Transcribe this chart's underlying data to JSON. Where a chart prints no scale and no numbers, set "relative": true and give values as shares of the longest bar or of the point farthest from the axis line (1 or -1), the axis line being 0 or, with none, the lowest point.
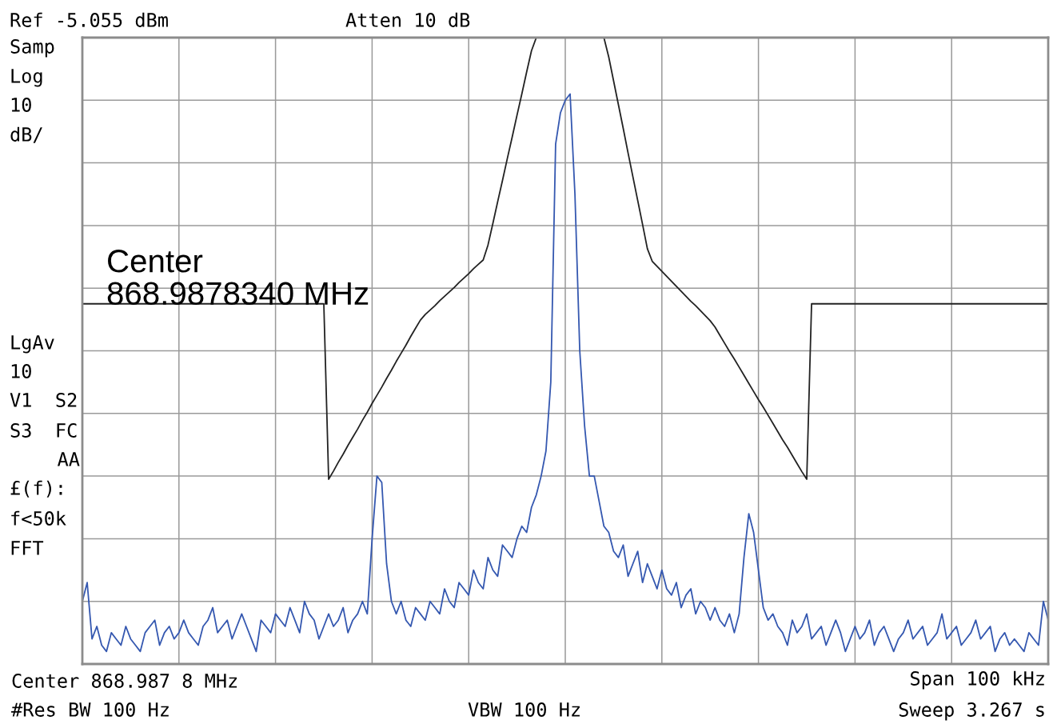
{
  "chart_data": {
    "type": "line",
    "title": "Ref -5.055 dBm",
    "subtitle": "Atten 10 dB",
    "relative": true,
    "grid": true,
    "line_style": "solid",
    "categories": [
      null,
      null,
      null,
      null,
      null,
      null,
      null,
      null,
      null,
      null,
      null,
      null,
      null,
      null,
      null,
      null,
      null,
      null,
      null,
      null,
      null,
      null,
      null,
      null,
      null,
      null,
      null,
      null,
      null,
      null,
      null,
      null,
      null,
      null,
      null,
      null,
      null,
      null,
      null,
      null,
      null,
      null,
      null,
      null,
      null,
      null,
      null,
      null,
      null,
      null,
      null,
      null,
      null,
      null,
      null,
      null,
      null,
      null,
      null,
      null,
      null,
      null,
      null,
      null,
      null,
      null,
      null,
      null,
      null,
      null,
      null,
      null,
      null,
      null,
      null,
      null,
      null,
      null,
      null,
      null,
      null,
      null,
      null,
      null,
      null,
      null,
      null,
      null,
      null,
      null,
      null,
      null,
      null,
      null,
      null,
      null,
      null,
      null,
      null,
      null,
      null,
      null,
      null,
      null,
      null,
      null,
      null,
      null,
      null,
      null,
      null,
      null,
      null,
      null,
      null,
      null,
      null,
      null,
      null,
      null,
      null,
      null,
      null,
      null,
      null,
      null,
      null,
      null,
      null,
      null,
      null,
      null,
      null,
      null,
      null,
      null,
      null,
      null,
      null,
      null,
      null,
      null,
      null,
      null,
      null,
      null,
      null,
      null,
      null,
      null,
      null,
      null,
      null,
      null,
      null,
      null,
      null,
      null,
      null,
      null,
      null,
      null,
      null,
      null,
      null,
      null,
      null,
      null,
      null,
      null,
      null,
      null,
      null,
      null,
      null,
      null,
      null,
      null,
      null,
      null,
      null,
      null,
      null,
      null,
      null,
      null,
      null,
      null,
      null,
      null,
      null,
      null,
      null,
      null,
      null,
      null,
      null,
      null,
      null,
      null,
      null
    ],
    "series": [
      {
        "color": "#3558b0",
        "values": [
          0.1,
          0.13,
          0.04,
          0.06,
          0.03,
          0.02,
          0.05,
          0.04,
          0.03,
          0.06,
          0.04,
          0.03,
          0.02,
          0.05,
          0.06,
          0.07,
          0.03,
          0.05,
          0.06,
          0.04,
          0.05,
          0.07,
          0.05,
          0.04,
          0.03,
          0.06,
          0.07,
          0.09,
          0.05,
          0.06,
          0.07,
          0.04,
          0.06,
          0.08,
          0.06,
          0.04,
          0.02,
          0.07,
          0.06,
          0.05,
          0.08,
          0.07,
          0.06,
          0.09,
          0.07,
          0.05,
          0.1,
          0.08,
          0.07,
          0.04,
          0.06,
          0.08,
          0.06,
          0.07,
          0.09,
          0.05,
          0.07,
          0.08,
          0.1,
          0.08,
          0.2,
          0.3,
          0.29,
          0.16,
          0.1,
          0.08,
          0.1,
          0.07,
          0.06,
          0.09,
          0.08,
          0.07,
          0.1,
          0.09,
          0.08,
          0.12,
          0.1,
          0.09,
          0.13,
          0.12,
          0.11,
          0.15,
          0.13,
          0.12,
          0.17,
          0.15,
          0.14,
          0.19,
          0.18,
          0.17,
          0.2,
          0.22,
          0.21,
          0.25,
          0.27,
          0.3,
          0.34,
          0.45,
          0.83,
          0.88,
          0.9,
          0.91,
          0.75,
          0.5,
          0.38,
          0.3,
          0.3,
          0.26,
          0.22,
          0.21,
          0.18,
          0.17,
          0.19,
          0.14,
          0.16,
          0.18,
          0.13,
          0.16,
          0.14,
          0.12,
          0.15,
          0.12,
          0.11,
          0.13,
          0.09,
          0.11,
          0.12,
          0.08,
          0.1,
          0.09,
          0.07,
          0.09,
          0.07,
          0.06,
          0.08,
          0.05,
          0.08,
          0.17,
          0.24,
          0.21,
          0.15,
          0.09,
          0.07,
          0.08,
          0.06,
          0.05,
          0.03,
          0.07,
          0.05,
          0.06,
          0.08,
          0.04,
          0.05,
          0.06,
          0.03,
          0.05,
          0.07,
          0.05,
          0.02,
          0.04,
          0.06,
          0.04,
          0.05,
          0.07,
          0.03,
          0.05,
          0.06,
          0.04,
          0.02,
          0.04,
          0.05,
          0.07,
          0.04,
          0.05,
          0.06,
          0.03,
          0.04,
          0.05,
          0.08,
          0.04,
          0.05,
          0.06,
          0.03,
          0.04,
          0.05,
          0.07,
          0.04,
          0.05,
          0.06,
          0.02,
          0.04,
          0.05,
          0.03,
          0.04,
          0.03,
          0.02,
          0.05,
          0.04,
          0.03,
          0.1,
          0.07
        ]
      },
      {
        "color": "#222222",
        "values": [
          0.575,
          0.575,
          0.575,
          0.575,
          0.575,
          0.575,
          0.575,
          0.575,
          0.575,
          0.575,
          0.575,
          0.575,
          0.575,
          0.575,
          0.575,
          0.575,
          0.575,
          0.575,
          0.575,
          0.575,
          0.575,
          0.575,
          0.575,
          0.575,
          0.575,
          0.575,
          0.575,
          0.575,
          0.575,
          0.575,
          0.575,
          0.575,
          0.575,
          0.575,
          0.575,
          0.575,
          0.575,
          0.575,
          0.575,
          0.575,
          0.575,
          0.575,
          0.575,
          0.575,
          0.575,
          0.575,
          0.575,
          0.575,
          0.575,
          0.575,
          0.575,
          0.295,
          0.308,
          0.322,
          0.335,
          0.349,
          0.362,
          0.375,
          0.389,
          0.402,
          0.416,
          0.429,
          0.442,
          0.456,
          0.469,
          0.483,
          0.496,
          0.509,
          0.523,
          0.536,
          0.549,
          0.558,
          0.565,
          0.572,
          0.58,
          0.587,
          0.594,
          0.601,
          0.609,
          0.616,
          0.623,
          0.631,
          0.638,
          0.645,
          0.669,
          0.703,
          0.738,
          0.772,
          0.807,
          0.841,
          0.876,
          0.91,
          0.945,
          0.979,
          1.0,
          1.0,
          1.0,
          1.0,
          1.0,
          1.0,
          1.0,
          1.0,
          1.0,
          1.0,
          1.0,
          1.0,
          1.0,
          1.0,
          1.0,
          0.969,
          0.931,
          0.893,
          0.855,
          0.816,
          0.778,
          0.74,
          0.702,
          0.663,
          0.643,
          0.635,
          0.627,
          0.619,
          0.611,
          0.603,
          0.595,
          0.587,
          0.579,
          0.572,
          0.564,
          0.556,
          0.548,
          0.538,
          0.525,
          0.512,
          0.499,
          0.487,
          0.474,
          0.461,
          0.448,
          0.435,
          0.422,
          0.41,
          0.397,
          0.384,
          0.371,
          0.358,
          0.346,
          0.333,
          0.32,
          0.307,
          0.295,
          0.575,
          0.575,
          0.575,
          0.575,
          0.575,
          0.575,
          0.575,
          0.575,
          0.575,
          0.575,
          0.575,
          0.575,
          0.575,
          0.575,
          0.575,
          0.575,
          0.575,
          0.575,
          0.575,
          0.575,
          0.575,
          0.575,
          0.575,
          0.575,
          0.575,
          0.575,
          0.575,
          0.575,
          0.575,
          0.575,
          0.575,
          0.575,
          0.575,
          0.575,
          0.575,
          0.575,
          0.575,
          0.575,
          0.575,
          0.575,
          0.575,
          0.575,
          0.575,
          0.575,
          0.575,
          0.575,
          0.575,
          0.575,
          0.575,
          0.575
        ]
      }
    ],
    "annotations": [
      "Samp",
      "Log",
      "10",
      "dB/",
      "LgAv",
      "10",
      "V1  S2",
      "S3  FC",
      "AA",
      "£(f):",
      "f<50k",
      "FFT",
      "Center 868.987 8 MHz",
      "#Res BW 100 Hz",
      "VBW 100 Hz",
      "Span 100 kHz",
      "Sweep 3.267 s",
      "Center\n868.9878340 MHz"
    ]
  }
}
